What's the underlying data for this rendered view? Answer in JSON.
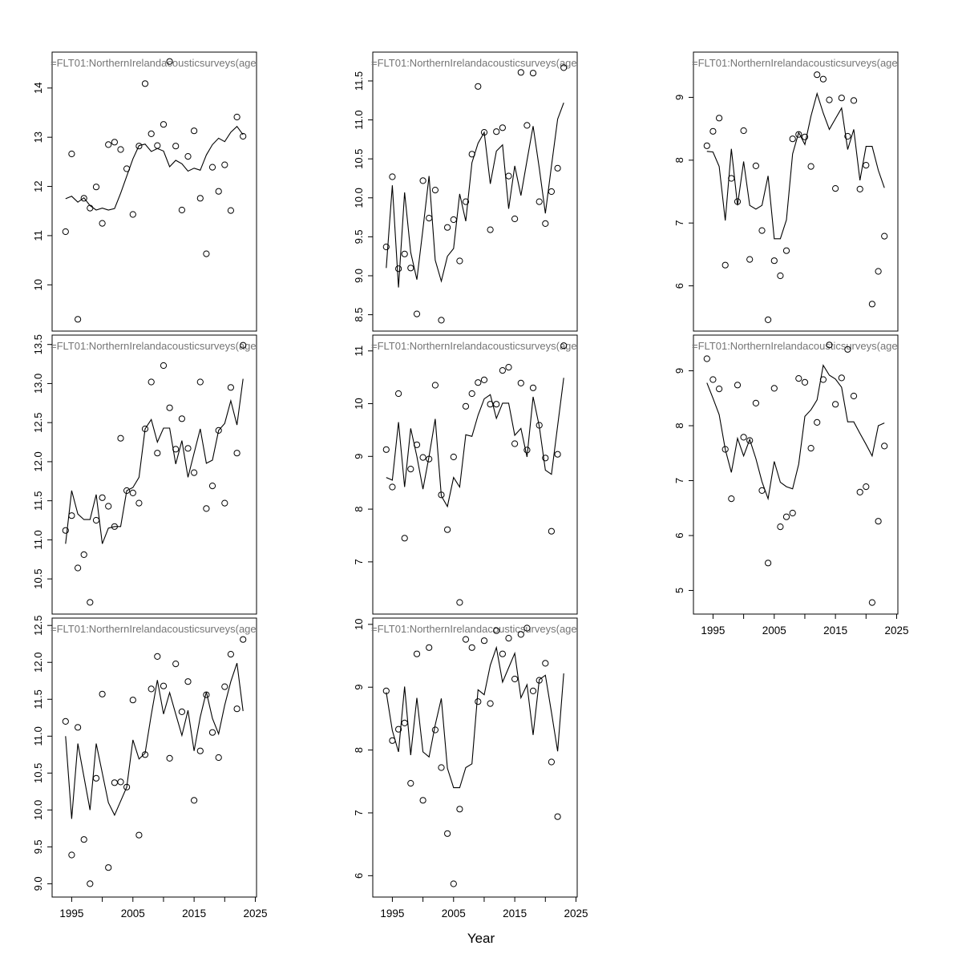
{
  "figure": {
    "xlabel": "Year",
    "panel_title": "=FLT01:NorthernIrelandacousticsurveys(age",
    "title_color": "#757575",
    "axis_color": "#000000",
    "background": "#ffffff",
    "years": [
      1994,
      1995,
      1996,
      1997,
      1998,
      1999,
      2000,
      2001,
      2002,
      2003,
      2004,
      2005,
      2006,
      2007,
      2008,
      2009,
      2010,
      2011,
      2012,
      2013,
      2014,
      2015,
      2016,
      2017,
      2018,
      2019,
      2020,
      2021,
      2022,
      2023
    ],
    "x_axis": {
      "xlim": [
        1991.8,
        2025.2
      ],
      "tick_years": [
        1995,
        2000,
        2005,
        2010,
        2015,
        2020,
        2025
      ],
      "labeled_years": [
        1995,
        2005,
        2015,
        2025
      ]
    }
  },
  "chart_data": [
    {
      "id": "panel-1",
      "type": "scatter+line",
      "row": 1,
      "col": 1,
      "x_axis_shown": false,
      "title": "=FLT01:NorthernIrelandacousticsurveys(age",
      "ylim": [
        9.06,
        14.73
      ],
      "ytick_values": [
        10,
        11,
        12,
        13,
        14
      ],
      "ytick_labels": [
        "10",
        "11",
        "12",
        "13",
        "14"
      ],
      "points": [
        11.08,
        12.66,
        9.3,
        11.76,
        11.56,
        11.99,
        11.25,
        12.85,
        12.9,
        12.75,
        12.36,
        11.43,
        12.82,
        14.09,
        13.07,
        12.83,
        13.26,
        14.54,
        12.82,
        11.52,
        12.61,
        13.13,
        11.76,
        10.63,
        12.39,
        11.9,
        12.44,
        11.51,
        13.41,
        13.02
      ],
      "line": [
        11.75,
        11.8,
        11.68,
        11.77,
        11.61,
        11.52,
        11.56,
        11.52,
        11.55,
        11.86,
        12.21,
        12.56,
        12.83,
        12.86,
        12.71,
        12.77,
        12.72,
        12.4,
        12.53,
        12.46,
        12.31,
        12.37,
        12.33,
        12.64,
        12.85,
        12.98,
        12.91,
        13.1,
        13.22,
        13.05
      ]
    },
    {
      "id": "panel-2",
      "type": "scatter+line",
      "row": 1,
      "col": 2,
      "x_axis_shown": false,
      "title": "=FLT01:NorthernIrelandacousticsurveys(age",
      "ylim": [
        8.29,
        11.87
      ],
      "ytick_values": [
        8.5,
        9.0,
        9.5,
        10.0,
        10.5,
        11.0,
        11.5
      ],
      "ytick_labels": [
        "8.5",
        "9.0",
        "9.5",
        "10.0",
        "10.5",
        "11.0",
        "11.5"
      ],
      "points": [
        9.37,
        10.27,
        9.09,
        9.28,
        9.1,
        8.51,
        10.22,
        9.74,
        10.1,
        8.43,
        9.62,
        9.72,
        9.19,
        9.95,
        10.56,
        11.43,
        10.84,
        9.59,
        10.85,
        10.9,
        10.28,
        9.73,
        11.61,
        10.93,
        11.6,
        9.95,
        9.67,
        10.08,
        10.38,
        11.67
      ],
      "line": [
        9.1,
        10.16,
        8.85,
        10.07,
        9.3,
        8.95,
        9.6,
        10.28,
        9.2,
        8.93,
        9.25,
        9.35,
        10.05,
        9.7,
        10.45,
        10.7,
        10.84,
        10.18,
        10.6,
        10.68,
        9.86,
        10.41,
        10.03,
        10.48,
        10.92,
        10.38,
        9.8,
        10.41,
        11.01,
        11.22
      ]
    },
    {
      "id": "panel-3",
      "type": "scatter+line",
      "row": 1,
      "col": 3,
      "x_axis_shown": false,
      "title": "=FLT01:NorthernIrelandacousticsurveys(age",
      "ylim": [
        5.28,
        9.72
      ],
      "ytick_values": [
        6,
        7,
        8,
        9
      ],
      "ytick_labels": [
        "6",
        "7",
        "8",
        "9"
      ],
      "points": [
        8.23,
        8.46,
        8.67,
        6.33,
        7.71,
        7.34,
        8.47,
        6.42,
        7.91,
        6.88,
        5.46,
        6.4,
        6.16,
        6.56,
        8.34,
        8.41,
        8.37,
        7.9,
        9.36,
        9.29,
        8.96,
        7.55,
        8.99,
        8.38,
        8.95,
        7.54,
        7.92,
        5.71,
        6.23,
        6.79
      ],
      "line": [
        8.14,
        8.13,
        7.9,
        7.04,
        8.18,
        7.28,
        7.98,
        7.28,
        7.22,
        7.28,
        7.75,
        6.75,
        6.75,
        7.05,
        8.1,
        8.44,
        8.25,
        8.7,
        9.06,
        8.75,
        8.49,
        8.66,
        8.83,
        8.17,
        8.49,
        7.68,
        8.22,
        8.22,
        7.84,
        7.56
      ]
    },
    {
      "id": "panel-4",
      "type": "scatter+line",
      "row": 2,
      "col": 1,
      "x_axis_shown": false,
      "title": "=FLT01:NorthernIrelandacousticsurveys(age",
      "ylim": [
        10.05,
        13.62
      ],
      "ytick_values": [
        10.5,
        11.0,
        11.5,
        12.0,
        12.5,
        13.0,
        13.5
      ],
      "ytick_labels": [
        "10.5",
        "11.0",
        "11.5",
        "12.0",
        "12.5",
        "13.0",
        "13.5"
      ],
      "points": [
        11.12,
        11.31,
        10.64,
        10.81,
        10.2,
        11.25,
        11.54,
        11.43,
        11.17,
        12.3,
        11.63,
        11.6,
        11.47,
        12.42,
        13.02,
        12.11,
        13.23,
        12.69,
        12.16,
        12.55,
        12.17,
        11.86,
        13.02,
        11.4,
        11.69,
        12.4,
        11.47,
        12.95,
        12.11,
        13.49
      ],
      "line": [
        10.95,
        11.63,
        11.33,
        11.26,
        11.26,
        11.58,
        10.95,
        11.15,
        11.17,
        11.17,
        11.63,
        11.67,
        11.8,
        12.42,
        12.54,
        12.25,
        12.43,
        12.43,
        11.97,
        12.27,
        11.8,
        12.11,
        12.42,
        11.98,
        12.02,
        12.4,
        12.49,
        12.78,
        12.47,
        13.06
      ]
    },
    {
      "id": "panel-5",
      "type": "scatter+line",
      "row": 2,
      "col": 2,
      "x_axis_shown": false,
      "title": "=FLT01:NorthernIrelandacousticsurveys(age",
      "ylim": [
        6.01,
        11.3
      ],
      "ytick_values": [
        7,
        8,
        9,
        10,
        11
      ],
      "ytick_labels": [
        "7",
        "8",
        "9",
        "10",
        "11"
      ],
      "points": [
        9.13,
        8.42,
        10.19,
        7.45,
        8.76,
        9.22,
        8.98,
        8.95,
        10.35,
        8.27,
        7.61,
        8.99,
        6.23,
        9.95,
        10.19,
        10.4,
        10.45,
        9.99,
        9.99,
        10.63,
        10.69,
        9.24,
        10.39,
        9.12,
        10.3,
        9.59,
        8.97,
        7.58,
        9.04,
        11.1
      ],
      "line": [
        8.6,
        8.55,
        9.65,
        8.42,
        9.53,
        9.0,
        8.38,
        9.0,
        9.71,
        8.25,
        8.05,
        8.6,
        8.42,
        9.41,
        9.38,
        9.78,
        10.09,
        10.17,
        9.72,
        10.01,
        10.01,
        9.4,
        9.53,
        8.99,
        10.13,
        9.57,
        8.74,
        8.66,
        9.58,
        10.49
      ]
    },
    {
      "id": "panel-6",
      "type": "scatter+line",
      "row": 2,
      "col": 3,
      "x_axis_shown": true,
      "title": "=FLT01:NorthernIrelandacousticsurveys(age",
      "ylim": [
        4.57,
        9.65
      ],
      "ytick_values": [
        5,
        6,
        7,
        8,
        9
      ],
      "ytick_labels": [
        "5",
        "6",
        "7",
        "8",
        "9"
      ],
      "points": [
        9.22,
        8.84,
        8.67,
        7.57,
        6.67,
        8.74,
        7.79,
        7.73,
        8.41,
        6.82,
        5.5,
        8.68,
        6.16,
        6.34,
        6.41,
        8.86,
        8.79,
        7.59,
        8.06,
        8.84,
        9.47,
        8.39,
        8.87,
        9.39,
        8.54,
        6.79,
        6.89,
        4.78,
        6.26,
        7.63
      ],
      "line": [
        8.78,
        8.5,
        8.2,
        7.57,
        7.15,
        7.77,
        7.45,
        7.75,
        7.4,
        6.98,
        6.67,
        7.35,
        6.97,
        6.89,
        6.85,
        7.3,
        8.17,
        8.29,
        8.47,
        9.1,
        8.92,
        8.85,
        8.7,
        8.07,
        8.07,
        7.86,
        7.66,
        7.45,
        8.0,
        8.05
      ]
    },
    {
      "id": "panel-7",
      "type": "scatter+line",
      "row": 3,
      "col": 1,
      "x_axis_shown": true,
      "title": "=FLT01:NorthernIrelandacousticsurveys(age",
      "ylim": [
        8.82,
        12.6
      ],
      "ytick_values": [
        9.0,
        9.5,
        10.0,
        10.5,
        11.0,
        11.5,
        12.0,
        12.5
      ],
      "ytick_labels": [
        "9.0",
        "9.5",
        "10.0",
        "10.5",
        "11.0",
        "11.5",
        "12.0",
        "12.5"
      ],
      "points": [
        11.2,
        9.39,
        11.12,
        9.6,
        9.0,
        10.43,
        11.57,
        9.22,
        10.37,
        10.38,
        10.31,
        11.49,
        9.66,
        10.75,
        11.64,
        12.08,
        11.68,
        10.7,
        11.98,
        11.33,
        11.74,
        10.13,
        10.8,
        11.56,
        11.05,
        10.71,
        11.67,
        12.11,
        11.37,
        12.31
      ],
      "line": [
        11.0,
        9.88,
        10.9,
        10.45,
        10.0,
        10.9,
        10.5,
        10.1,
        9.93,
        10.12,
        10.31,
        10.95,
        10.69,
        10.77,
        11.29,
        11.76,
        11.3,
        11.59,
        11.3,
        11.01,
        11.35,
        10.8,
        11.26,
        11.6,
        11.24,
        11.03,
        11.42,
        11.74,
        11.99,
        11.34
      ]
    },
    {
      "id": "panel-8",
      "type": "scatter+line",
      "row": 3,
      "col": 2,
      "x_axis_shown": true,
      "title": "=FLT01:NorthernIrelandacousticsurveys(age",
      "ylim": [
        5.66,
        10.1
      ],
      "ytick_values": [
        6,
        7,
        8,
        9,
        10
      ],
      "ytick_labels": [
        "6",
        "7",
        "8",
        "9",
        "10"
      ],
      "points": [
        8.94,
        8.15,
        8.33,
        8.43,
        7.47,
        9.53,
        7.2,
        9.63,
        8.32,
        7.72,
        6.67,
        5.87,
        7.06,
        9.76,
        9.63,
        8.77,
        9.74,
        8.74,
        9.9,
        9.53,
        9.78,
        9.13,
        9.84,
        9.94,
        8.94,
        9.11,
        9.38,
        7.81,
        6.94,
        null
      ],
      "line": [
        8.92,
        8.31,
        7.97,
        9.01,
        7.92,
        8.83,
        7.97,
        7.89,
        8.4,
        8.82,
        7.71,
        7.4,
        7.4,
        7.72,
        7.78,
        8.96,
        8.88,
        9.35,
        9.63,
        9.08,
        9.31,
        9.54,
        8.83,
        9.04,
        8.24,
        9.12,
        9.19,
        8.6,
        7.98,
        9.22
      ]
    }
  ]
}
